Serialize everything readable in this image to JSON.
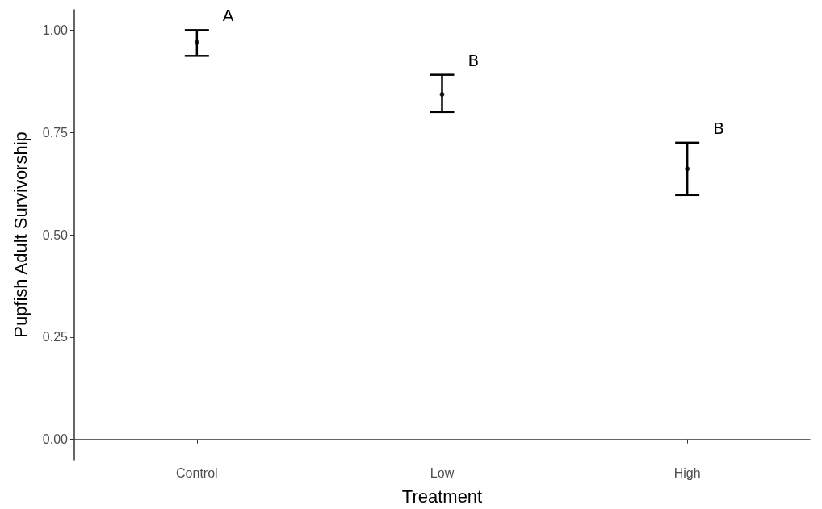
{
  "chart_data": {
    "type": "scatter",
    "xlabel": "Treatment",
    "ylabel": "Pupfish Adult Survivorship",
    "categories": [
      "Control",
      "Low",
      "High"
    ],
    "series": [
      {
        "color": "#000000",
        "values": [
          0.97,
          0.843,
          0.661
        ],
        "errors": [
          [
            0.937,
            1.0
          ],
          [
            0.8,
            0.891
          ],
          [
            0.597,
            0.725
          ]
        ]
      }
    ],
    "ylim": [
      -0.05,
      1.05
    ],
    "yticks": [
      {
        "value": 0,
        "label": "0.00"
      },
      {
        "value": 0.25,
        "label": "0.25"
      },
      {
        "value": 0.5,
        "label": "0.50"
      },
      {
        "value": 0.75,
        "label": "0.75"
      },
      {
        "value": 1,
        "label": "1.00"
      }
    ],
    "grid": false,
    "marker": "circle",
    "annotations": [
      "A",
      "B",
      "B"
    ]
  }
}
